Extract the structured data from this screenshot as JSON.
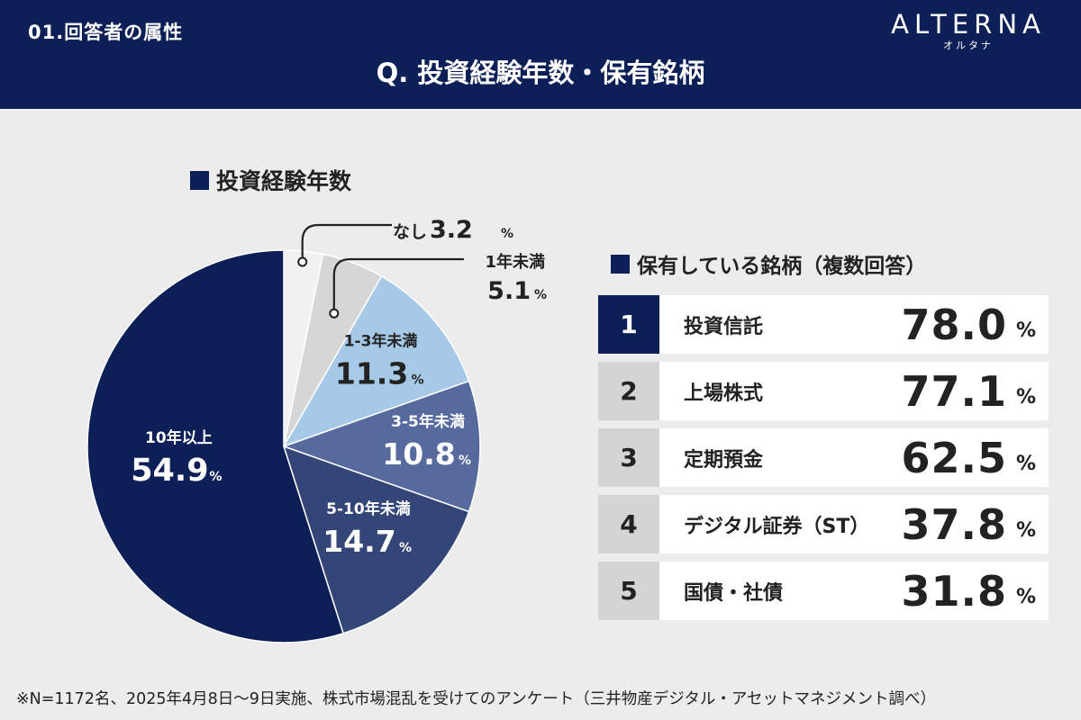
{
  "header": {
    "section_label": "01.回答者の属性",
    "title": "Q. 投資経験年数・保有銘柄",
    "logo": "ALTERNA",
    "logo_sub": "オルタナ"
  },
  "colors": {
    "navy": "#0c2057",
    "slate": "#334677",
    "steel": "#566a9e",
    "light_blue": "#a5c9e6",
    "gray": "#d6d6d6",
    "pale": "#f1f1f1",
    "rank_gray": "#d4d4d4"
  },
  "chart_data": [
    {
      "type": "pie",
      "title": "投資経験年数",
      "unit": "%",
      "slices": [
        {
          "label": "なし",
          "value": 3.2
        },
        {
          "label": "1年未満",
          "value": 5.1
        },
        {
          "label": "1-3年未満",
          "value": 11.3
        },
        {
          "label": "3-5年未満",
          "value": 10.8
        },
        {
          "label": "5-10年未満",
          "value": 14.7
        },
        {
          "label": "10年以上",
          "value": 54.9
        }
      ]
    },
    {
      "type": "table",
      "title": "保有している銘柄（複数回答）",
      "unit": "%",
      "rows": [
        {
          "rank": "1",
          "label": "投資信託",
          "value": "78.0"
        },
        {
          "rank": "2",
          "label": "上場株式",
          "value": "77.1"
        },
        {
          "rank": "3",
          "label": "定期預金",
          "value": "62.5"
        },
        {
          "rank": "4",
          "label": "デジタル証券（ST）",
          "value": "37.8"
        },
        {
          "rank": "5",
          "label": "国債・社債",
          "value": "31.8"
        }
      ]
    }
  ],
  "footnote": "※N=1172名、2025年4月8日〜9日実施、株式市場混乱を受けてのアンケート（三井物産デジタル・アセットマネジメント調べ）"
}
